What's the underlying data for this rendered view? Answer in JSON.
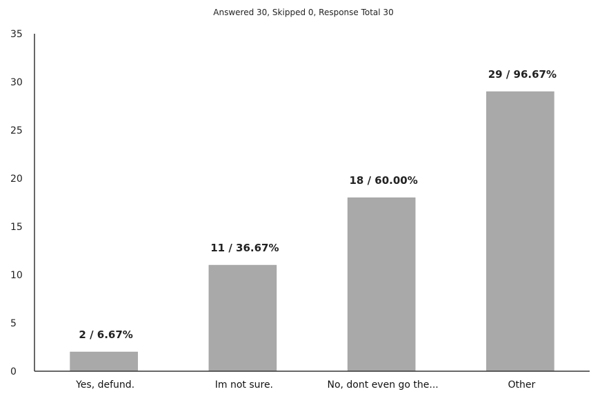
{
  "chart_data": {
    "type": "bar",
    "title": "Answered 30, Skipped 0, Response Total 30",
    "xlabel": "",
    "ylabel": "",
    "categories": [
      "Yes, defund.",
      "Im not sure.",
      "No, dont even go the...",
      "Other"
    ],
    "values": [
      2,
      11,
      18,
      29
    ],
    "data_labels": [
      "2 / 6.67%",
      "11 / 36.67%",
      "18 / 60.00%",
      "29 / 96.67%"
    ],
    "ylim": [
      0,
      35
    ],
    "yticks": [
      "0",
      "5",
      "10",
      "15",
      "20",
      "25",
      "30",
      "35"
    ],
    "grid": false,
    "legend": "none",
    "colors": {
      "bar": "#a9a9a9",
      "axis": "#333333"
    }
  }
}
